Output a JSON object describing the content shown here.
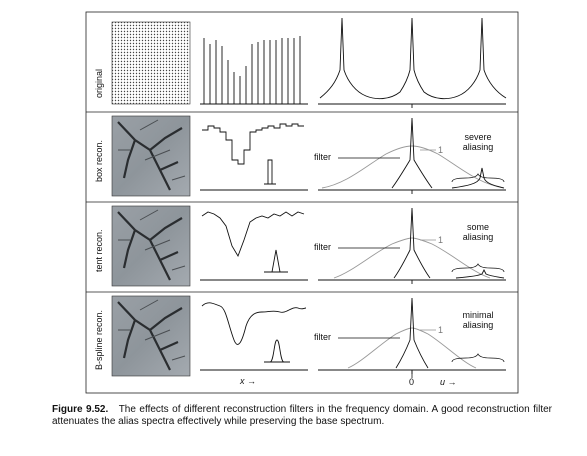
{
  "figure": {
    "rows": [
      {
        "label": "original",
        "annotation": []
      },
      {
        "label": "box recon.",
        "annotation": [
          "severe",
          "aliasing"
        ]
      },
      {
        "label": "tent recon.",
        "annotation": [
          "some",
          "aliasing"
        ]
      },
      {
        "label": "B-spline recon.",
        "annotation": [
          "minimal",
          "aliasing"
        ]
      }
    ],
    "filter_label": "filter",
    "one_label": "1",
    "zero_label": "0",
    "x_axis_label": "x →",
    "u_axis_label": "u →"
  },
  "caption": {
    "number": "Figure 9.52.",
    "text": "The effects of different reconstruction filters in the frequency domain. A good reconstruction filter attenuates the alias spectra effectively while preserving the base spectrum."
  }
}
